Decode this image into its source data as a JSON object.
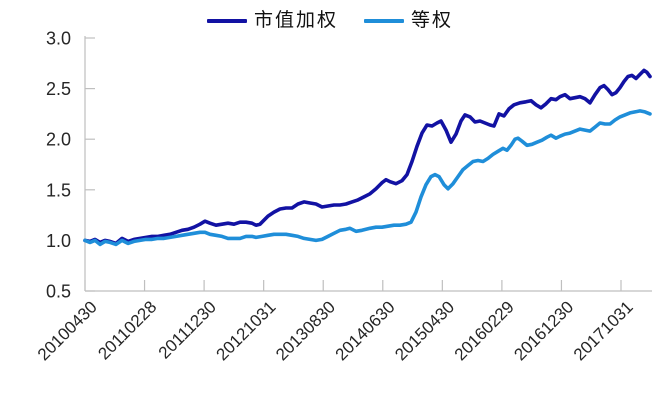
{
  "legend": {
    "items": [
      {
        "label": "市值加权",
        "color": "#1212a3"
      },
      {
        "label": "等权",
        "color": "#1f8ed9"
      }
    ]
  },
  "chart_data": {
    "type": "line",
    "title": "",
    "xlabel": "",
    "ylabel": "",
    "ylim": [
      0.5,
      3.0
    ],
    "grid": false,
    "legend_position": "top-center",
    "axis_color": "#bfbfbf",
    "label_color": "#262626",
    "y_tick_labels": [
      "3.0",
      "2.5",
      "2.0",
      "1.5",
      "1.0",
      "0.5"
    ],
    "x_tick_labels": [
      "20100430",
      "20110228",
      "20111230",
      "20121031",
      "20130830",
      "20140630",
      "20150430",
      "20160229",
      "20161230",
      "20171031"
    ],
    "series": [
      {
        "name": "市值加权",
        "id": "market-cap-weighted",
        "color": "#1212a3",
        "points": [
          [
            85,
            1.0
          ],
          [
            90,
            0.99
          ],
          [
            95,
            1.01
          ],
          [
            100,
            0.98
          ],
          [
            105,
            1.0
          ],
          [
            110,
            0.99
          ],
          [
            116,
            0.97
          ],
          [
            122,
            1.02
          ],
          [
            128,
            0.99
          ],
          [
            134,
            1.01
          ],
          [
            140,
            1.02
          ],
          [
            146,
            1.03
          ],
          [
            152,
            1.04
          ],
          [
            158,
            1.04
          ],
          [
            164,
            1.05
          ],
          [
            170,
            1.06
          ],
          [
            176,
            1.08
          ],
          [
            182,
            1.1
          ],
          [
            188,
            1.11
          ],
          [
            194,
            1.13
          ],
          [
            200,
            1.16
          ],
          [
            205,
            1.19
          ],
          [
            210,
            1.17
          ],
          [
            216,
            1.15
          ],
          [
            222,
            1.16
          ],
          [
            228,
            1.17
          ],
          [
            234,
            1.16
          ],
          [
            240,
            1.18
          ],
          [
            246,
            1.18
          ],
          [
            252,
            1.17
          ],
          [
            256,
            1.15
          ],
          [
            260,
            1.16
          ],
          [
            268,
            1.24
          ],
          [
            274,
            1.28
          ],
          [
            280,
            1.31
          ],
          [
            286,
            1.32
          ],
          [
            292,
            1.32
          ],
          [
            298,
            1.36
          ],
          [
            304,
            1.38
          ],
          [
            310,
            1.37
          ],
          [
            316,
            1.36
          ],
          [
            322,
            1.33
          ],
          [
            328,
            1.34
          ],
          [
            334,
            1.35
          ],
          [
            340,
            1.35
          ],
          [
            346,
            1.36
          ],
          [
            352,
            1.38
          ],
          [
            358,
            1.4
          ],
          [
            364,
            1.43
          ],
          [
            370,
            1.46
          ],
          [
            376,
            1.51
          ],
          [
            382,
            1.57
          ],
          [
            386,
            1.6
          ],
          [
            390,
            1.58
          ],
          [
            396,
            1.56
          ],
          [
            402,
            1.59
          ],
          [
            407,
            1.65
          ],
          [
            412,
            1.78
          ],
          [
            417,
            1.93
          ],
          [
            422,
            2.06
          ],
          [
            427,
            2.14
          ],
          [
            432,
            2.13
          ],
          [
            437,
            2.16
          ],
          [
            441,
            2.18
          ],
          [
            446,
            2.09
          ],
          [
            451,
            1.97
          ],
          [
            456,
            2.05
          ],
          [
            461,
            2.18
          ],
          [
            465,
            2.24
          ],
          [
            470,
            2.22
          ],
          [
            475,
            2.17
          ],
          [
            480,
            2.18
          ],
          [
            485,
            2.16
          ],
          [
            490,
            2.14
          ],
          [
            494,
            2.13
          ],
          [
            499,
            2.25
          ],
          [
            504,
            2.23
          ],
          [
            509,
            2.3
          ],
          [
            514,
            2.34
          ],
          [
            520,
            2.36
          ],
          [
            526,
            2.37
          ],
          [
            531,
            2.38
          ],
          [
            536,
            2.34
          ],
          [
            541,
            2.31
          ],
          [
            546,
            2.35
          ],
          [
            551,
            2.4
          ],
          [
            556,
            2.39
          ],
          [
            560,
            2.42
          ],
          [
            565,
            2.44
          ],
          [
            570,
            2.4
          ],
          [
            575,
            2.41
          ],
          [
            580,
            2.42
          ],
          [
            585,
            2.4
          ],
          [
            590,
            2.36
          ],
          [
            595,
            2.44
          ],
          [
            600,
            2.51
          ],
          [
            604,
            2.53
          ],
          [
            608,
            2.49
          ],
          [
            612,
            2.44
          ],
          [
            616,
            2.46
          ],
          [
            620,
            2.51
          ],
          [
            624,
            2.57
          ],
          [
            628,
            2.62
          ],
          [
            632,
            2.63
          ],
          [
            636,
            2.6
          ],
          [
            640,
            2.64
          ],
          [
            644,
            2.68
          ],
          [
            647,
            2.66
          ],
          [
            650,
            2.62
          ]
        ]
      },
      {
        "name": "等权",
        "id": "equal-weighted",
        "color": "#1f8ed9",
        "points": [
          [
            85,
            1.0
          ],
          [
            90,
            0.98
          ],
          [
            95,
            1.0
          ],
          [
            100,
            0.96
          ],
          [
            105,
            0.99
          ],
          [
            110,
            0.98
          ],
          [
            116,
            0.96
          ],
          [
            122,
            1.0
          ],
          [
            128,
            0.97
          ],
          [
            134,
            0.99
          ],
          [
            140,
            1.0
          ],
          [
            146,
            1.01
          ],
          [
            152,
            1.01
          ],
          [
            158,
            1.02
          ],
          [
            164,
            1.02
          ],
          [
            170,
            1.03
          ],
          [
            176,
            1.04
          ],
          [
            182,
            1.05
          ],
          [
            188,
            1.06
          ],
          [
            194,
            1.07
          ],
          [
            200,
            1.08
          ],
          [
            205,
            1.08
          ],
          [
            210,
            1.06
          ],
          [
            216,
            1.05
          ],
          [
            222,
            1.04
          ],
          [
            228,
            1.02
          ],
          [
            234,
            1.02
          ],
          [
            240,
            1.02
          ],
          [
            246,
            1.04
          ],
          [
            252,
            1.04
          ],
          [
            256,
            1.03
          ],
          [
            262,
            1.04
          ],
          [
            268,
            1.05
          ],
          [
            274,
            1.06
          ],
          [
            280,
            1.06
          ],
          [
            286,
            1.06
          ],
          [
            292,
            1.05
          ],
          [
            298,
            1.04
          ],
          [
            304,
            1.02
          ],
          [
            310,
            1.01
          ],
          [
            316,
            1.0
          ],
          [
            322,
            1.01
          ],
          [
            328,
            1.04
          ],
          [
            334,
            1.07
          ],
          [
            340,
            1.1
          ],
          [
            346,
            1.11
          ],
          [
            350,
            1.12
          ],
          [
            356,
            1.09
          ],
          [
            362,
            1.1
          ],
          [
            370,
            1.12
          ],
          [
            376,
            1.13
          ],
          [
            382,
            1.13
          ],
          [
            388,
            1.14
          ],
          [
            394,
            1.15
          ],
          [
            400,
            1.15
          ],
          [
            406,
            1.16
          ],
          [
            411,
            1.18
          ],
          [
            416,
            1.28
          ],
          [
            421,
            1.43
          ],
          [
            426,
            1.55
          ],
          [
            431,
            1.63
          ],
          [
            435,
            1.65
          ],
          [
            439,
            1.63
          ],
          [
            444,
            1.55
          ],
          [
            448,
            1.51
          ],
          [
            453,
            1.56
          ],
          [
            458,
            1.63
          ],
          [
            463,
            1.7
          ],
          [
            468,
            1.74
          ],
          [
            473,
            1.78
          ],
          [
            478,
            1.79
          ],
          [
            483,
            1.78
          ],
          [
            488,
            1.81
          ],
          [
            493,
            1.85
          ],
          [
            498,
            1.88
          ],
          [
            503,
            1.91
          ],
          [
            507,
            1.89
          ],
          [
            511,
            1.94
          ],
          [
            515,
            2.0
          ],
          [
            518,
            2.01
          ],
          [
            522,
            1.98
          ],
          [
            527,
            1.94
          ],
          [
            532,
            1.95
          ],
          [
            537,
            1.97
          ],
          [
            542,
            1.99
          ],
          [
            547,
            2.02
          ],
          [
            551,
            2.04
          ],
          [
            556,
            2.01
          ],
          [
            560,
            2.03
          ],
          [
            565,
            2.05
          ],
          [
            570,
            2.06
          ],
          [
            575,
            2.08
          ],
          [
            580,
            2.1
          ],
          [
            585,
            2.09
          ],
          [
            590,
            2.08
          ],
          [
            595,
            2.12
          ],
          [
            600,
            2.16
          ],
          [
            605,
            2.15
          ],
          [
            610,
            2.15
          ],
          [
            615,
            2.19
          ],
          [
            620,
            2.22
          ],
          [
            625,
            2.24
          ],
          [
            630,
            2.26
          ],
          [
            635,
            2.27
          ],
          [
            640,
            2.28
          ],
          [
            645,
            2.27
          ],
          [
            650,
            2.25
          ]
        ]
      }
    ]
  }
}
